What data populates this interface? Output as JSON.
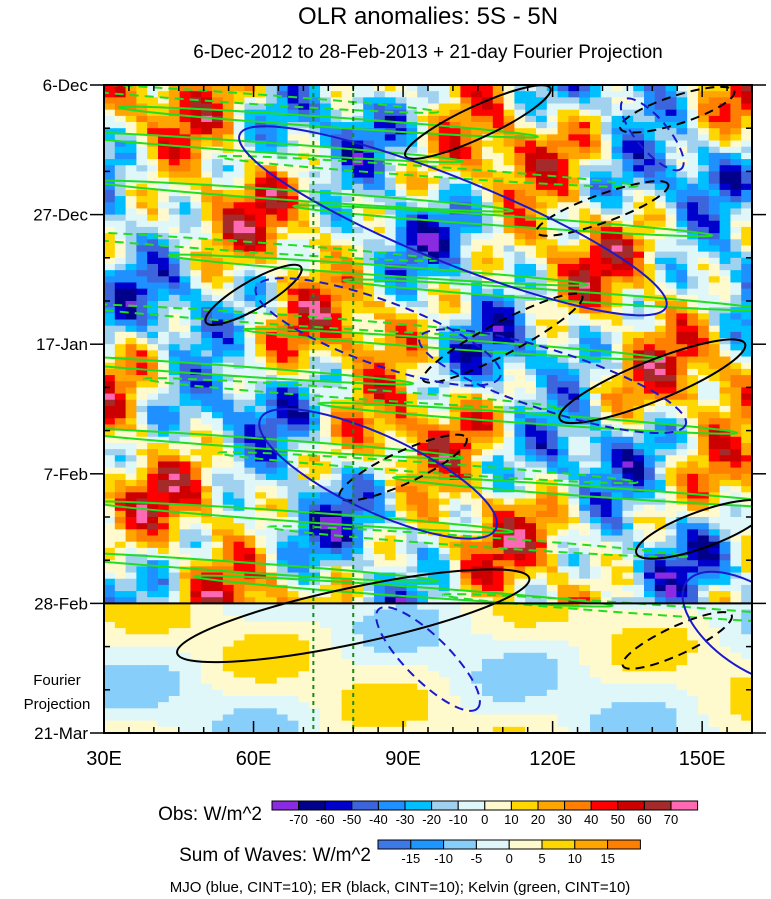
{
  "chart_data": {
    "type": "heatmap",
    "title": "OLR anomalies: 5S - 5N",
    "subtitle": "6-Dec-2012 to 28-Feb-2013 + 21-day Fourier Projection",
    "x_axis": {
      "label": "",
      "range_degE": [
        30,
        160
      ],
      "ticks": [
        {
          "value": 30,
          "label": "30E"
        },
        {
          "value": 60,
          "label": "60E"
        },
        {
          "value": 90,
          "label": "90E"
        },
        {
          "value": 120,
          "label": "120E"
        },
        {
          "value": 150,
          "label": "150E"
        }
      ]
    },
    "y_axis": {
      "label": "",
      "range_dates": [
        "2012-12-06",
        "2013-03-21"
      ],
      "ticks": [
        {
          "date": "2012-12-06",
          "label": "6-Dec"
        },
        {
          "date": "2012-12-27",
          "label": "27-Dec"
        },
        {
          "date": "2013-01-17",
          "label": "17-Jan"
        },
        {
          "date": "2013-02-07",
          "label": "7-Feb"
        },
        {
          "date": "2013-02-28",
          "label": "28-Feb"
        },
        {
          "date": "2013-03-21",
          "label": "21-Mar"
        }
      ],
      "observation_end_date": "2013-02-28",
      "projection_label_line1": "Fourier",
      "projection_label_line2": "Projection"
    },
    "reference_longitudes_degE": [
      72,
      80
    ],
    "obs_colorbar": {
      "title": "Obs: W/m^2",
      "levels": [
        -70,
        -60,
        -50,
        -40,
        -30,
        -20,
        -10,
        0,
        10,
        20,
        30,
        40,
        50,
        60,
        70
      ],
      "level_labels": [
        "-70",
        "-60",
        "-50",
        "-40",
        "-30",
        "-20",
        "-10",
        "0",
        "10",
        "20",
        "30",
        "40",
        "50",
        "60",
        "70"
      ],
      "colors": [
        "#8a2be2",
        "#00008b",
        "#0000cd",
        "#3c64dc",
        "#1e90ff",
        "#00bfff",
        "#a0d2f0",
        "#e0f7fa",
        "#fffacd",
        "#ffd700",
        "#ffa500",
        "#ff7f00",
        "#ff0000",
        "#cd0000",
        "#a52a2a",
        "#ff69b4"
      ]
    },
    "waves_colorbar": {
      "title": "Sum of Waves: W/m^2",
      "levels": [
        -15,
        -10,
        -5,
        0,
        5,
        10,
        15
      ],
      "level_labels": [
        "-15",
        "-10",
        "-5",
        "0",
        "5",
        "10",
        "15"
      ],
      "colors": [
        "#3c78e6",
        "#1e96ff",
        "#87cefa",
        "#e0f7fa",
        "#fffacd",
        "#ffd700",
        "#ffa500",
        "#ff7f00"
      ]
    },
    "contour_legend": "MJO (blue, CINT=10); ER (black, CINT=10); Kelvin (green, CINT=10)",
    "series": [
      {
        "name": "MJO",
        "color": "#1a1acd"
      },
      {
        "name": "ER",
        "color": "#000000"
      },
      {
        "name": "Kelvin",
        "color": "#22dd22"
      }
    ],
    "grid": false
  }
}
